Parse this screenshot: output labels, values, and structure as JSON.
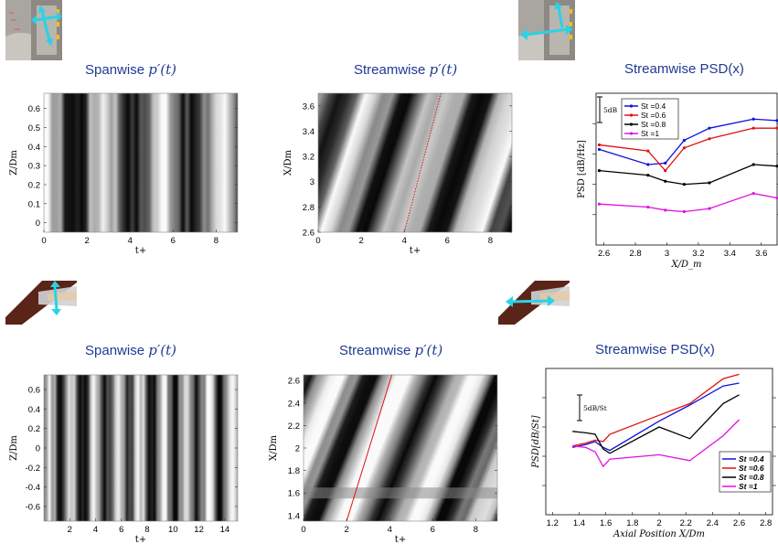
{
  "titles": {
    "top_left": {
      "prefix": "Spanwise ",
      "sym": "p′(t)"
    },
    "top_middle": {
      "prefix": "Streamwise ",
      "sym": "p′(t)"
    },
    "top_right": "Streamwise PSD(x)",
    "bottom_left": {
      "prefix": "Spanwise ",
      "sym": "p′(t)"
    },
    "bottom_middle": {
      "prefix": "Streamwise ",
      "sym": "p′(t)"
    },
    "bottom_right": "Streamwise PSD(x)"
  },
  "icons": [
    "nozzle-spanwise-arrows-icon",
    "nozzle-streamwise-arrows-icon",
    "wing-spanwise-arrows-icon",
    "wing-streamwise-arrows-icon"
  ],
  "colors": {
    "title": "#1f3a93",
    "cyan_arrow": "#29d3e6",
    "blue": "#1010e0",
    "red": "#e01010",
    "black": "#000000",
    "magenta": "#e010e0",
    "wing": "#5a2418"
  },
  "chart_data": [
    {
      "id": "tl",
      "type": "heatmap",
      "xlabel": "t+",
      "ylabel": "Z/Dm",
      "xlim": [
        0,
        9
      ],
      "ylim": [
        -0.05,
        0.68
      ],
      "xticks": [
        "0",
        "2",
        "4",
        "6",
        "8"
      ],
      "xtick_values": [
        0,
        2,
        4,
        6,
        8
      ],
      "yticks": [
        "0",
        "0.1",
        "0.2",
        "0.3",
        "0.4",
        "0.5",
        "0.6"
      ],
      "ytick_values": [
        0,
        0.1,
        0.2,
        0.3,
        0.4,
        0.5,
        0.6
      ],
      "colormap": "grayscale"
    },
    {
      "id": "tm",
      "type": "heatmap",
      "xlabel": "t+",
      "ylabel": "X/Dm",
      "xlim": [
        0,
        9
      ],
      "ylim": [
        2.6,
        3.7
      ],
      "xticks": [
        "0",
        "2",
        "4",
        "6",
        "8"
      ],
      "xtick_values": [
        0,
        2,
        4,
        6,
        8
      ],
      "yticks": [
        "2.6",
        "2.8",
        "3",
        "3.2",
        "3.4",
        "3.6"
      ],
      "ytick_values": [
        2.6,
        2.8,
        3.0,
        3.2,
        3.4,
        3.6
      ],
      "colormap": "grayscale",
      "annotation": {
        "style": "red dotted",
        "from": [
          4.0,
          2.6
        ],
        "to": [
          5.7,
          3.7
        ]
      }
    },
    {
      "id": "tr",
      "type": "line",
      "xlabel": "X/D_m",
      "ylabel": "PSD [dB/Hz]",
      "xlim": [
        2.55,
        3.7
      ],
      "ylim": [
        0,
        10
      ],
      "xticks": [
        "2.6",
        "2.8",
        "3",
        "3.2",
        "3.4",
        "3.6"
      ],
      "xtick_values": [
        2.6,
        2.8,
        3.0,
        3.2,
        3.4,
        3.6
      ],
      "scale_bar": "5dB",
      "legend_location": "top-left",
      "x": [
        2.57,
        2.88,
        2.99,
        3.11,
        3.27,
        3.55,
        3.7
      ],
      "series": [
        {
          "name": "St =0.4",
          "color": "#1010e0",
          "values": [
            6.3,
            5.3,
            5.4,
            6.9,
            7.7,
            8.3,
            8.2
          ]
        },
        {
          "name": "St =0.6",
          "color": "#e01010",
          "values": [
            6.6,
            6.2,
            4.9,
            6.4,
            7.0,
            7.7,
            7.7
          ]
        },
        {
          "name": "St =0.8",
          "color": "#000000",
          "values": [
            4.9,
            4.6,
            4.2,
            4.0,
            4.1,
            5.3,
            5.2
          ]
        },
        {
          "name": "St =1",
          "color": "#e010e0",
          "values": [
            2.7,
            2.5,
            2.3,
            2.2,
            2.4,
            3.4,
            3.1
          ]
        }
      ]
    },
    {
      "id": "bl",
      "type": "heatmap",
      "xlabel": "t+",
      "ylabel": "Z/Dm",
      "xlim": [
        0,
        15
      ],
      "ylim": [
        -0.75,
        0.75
      ],
      "xticks": [
        "2",
        "4",
        "6",
        "8",
        "10",
        "12",
        "14"
      ],
      "xtick_values": [
        2,
        4,
        6,
        8,
        10,
        12,
        14
      ],
      "yticks": [
        "-0.6",
        "-0.4",
        "-0.2",
        "0",
        "0.2",
        "0.4",
        "0.6"
      ],
      "ytick_values": [
        -0.6,
        -0.4,
        -0.2,
        0,
        0.2,
        0.4,
        0.6
      ],
      "colormap": "grayscale"
    },
    {
      "id": "bm",
      "type": "heatmap",
      "xlabel": "t+",
      "ylabel": "X/Dm",
      "xlim": [
        0,
        9
      ],
      "ylim": [
        1.35,
        2.65
      ],
      "xticks": [
        "0",
        "2",
        "4",
        "6",
        "8"
      ],
      "xtick_values": [
        0,
        2,
        4,
        6,
        8
      ],
      "yticks": [
        "1.4",
        "1.6",
        "1.8",
        "2",
        "2.2",
        "2.4",
        "2.6"
      ],
      "ytick_values": [
        1.4,
        1.6,
        1.8,
        2.0,
        2.2,
        2.4,
        2.6
      ],
      "colormap": "grayscale",
      "annotation": {
        "style": "red solid",
        "from": [
          2.0,
          1.35
        ],
        "to": [
          4.1,
          2.65
        ]
      }
    },
    {
      "id": "br",
      "type": "line",
      "xlabel": "Axial Position X/Dm",
      "ylabel": "PSD[dB/St]",
      "xlim": [
        1.15,
        2.85
      ],
      "ylim": [
        0,
        10
      ],
      "xticks": [
        "1.2",
        "1.4",
        "1.6",
        "1.8",
        "2",
        "2.2",
        "2.4",
        "2.6",
        "2.8"
      ],
      "xtick_values": [
        1.2,
        1.4,
        1.6,
        1.8,
        2.0,
        2.2,
        2.4,
        2.6,
        2.8
      ],
      "scale_bar": "5dB/St",
      "legend_location": "bottom-right",
      "x": [
        1.35,
        1.45,
        1.52,
        1.58,
        1.63,
        2.0,
        2.23,
        2.48,
        2.6
      ],
      "series": [
        {
          "name": "St =0.4",
          "color": "#1010e0",
          "values": [
            4.6,
            4.8,
            5.0,
            4.6,
            4.4,
            6.4,
            7.5,
            8.8,
            9.0
          ]
        },
        {
          "name": "St =0.6",
          "color": "#e01010",
          "values": [
            4.7,
            4.9,
            5.1,
            5.0,
            5.5,
            6.8,
            7.6,
            9.3,
            9.6
          ]
        },
        {
          "name": "St =0.8",
          "color": "#000000",
          "values": [
            5.7,
            5.6,
            5.5,
            4.5,
            4.2,
            6.0,
            5.2,
            7.6,
            8.2
          ]
        },
        {
          "name": "St =1",
          "color": "#e010e0",
          "values": [
            4.7,
            4.6,
            4.3,
            3.3,
            3.8,
            4.1,
            3.7,
            5.4,
            6.5
          ]
        }
      ]
    }
  ]
}
